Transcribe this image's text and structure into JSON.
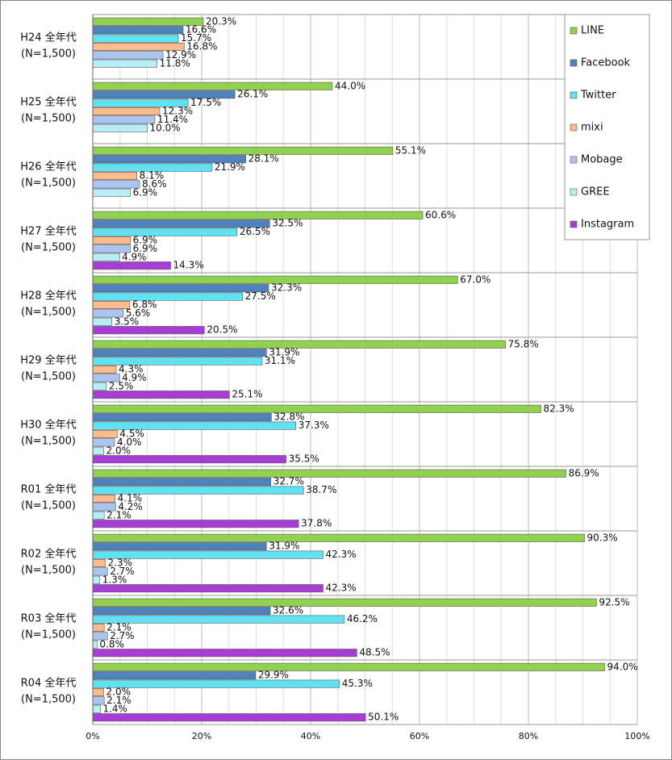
{
  "chart_data": {
    "type": "bar",
    "orientation": "horizontal",
    "categories": [
      "H24 全年代",
      "H25 全年代",
      "H26 全年代",
      "H27 全年代",
      "H28 全年代",
      "H29 全年代",
      "H30 全年代",
      "R01 全年代",
      "R02 全年代",
      "R03 全年代",
      "R04 全年代"
    ],
    "category_sublabels": [
      "(N=1,500)",
      "(N=1,500)",
      "(N=1,500)",
      "(N=1,500)",
      "(N=1,500)",
      "(N=1,500)",
      "(N=1,500)",
      "(N=1,500)",
      "(N=1,500)",
      "(N=1,500)",
      "(N=1,500)"
    ],
    "series": [
      {
        "name": "LINE",
        "color": "#92d050",
        "values": [
          20.3,
          44.0,
          55.1,
          60.6,
          67.0,
          75.8,
          82.3,
          86.9,
          90.3,
          92.5,
          94.0
        ],
        "value_labels": [
          "20.3%",
          "44.0%",
          "55.1%",
          "60.6%",
          "67.0%",
          "75.8%",
          "82.3%",
          "86.9%",
          "90.3%",
          "92.5%",
          "94.0%"
        ]
      },
      {
        "name": "Facebook",
        "color": "#4f81bd",
        "values": [
          16.6,
          26.1,
          28.1,
          32.5,
          32.3,
          31.9,
          32.8,
          32.7,
          31.9,
          32.6,
          29.9
        ],
        "value_labels": [
          "16.6%",
          "26.1%",
          "28.1%",
          "32.5%",
          "32.3%",
          "31.9%",
          "32.8%",
          "32.7%",
          "31.9%",
          "32.6%",
          "29.9%"
        ]
      },
      {
        "name": "Twitter",
        "color": "#5fe3f2",
        "values": [
          15.7,
          17.5,
          21.9,
          26.5,
          27.5,
          31.1,
          37.3,
          38.7,
          42.3,
          46.2,
          45.3
        ],
        "value_labels": [
          "15.7%",
          "17.5%",
          "21.9%",
          "26.5%",
          "27.5%",
          "31.1%",
          "37.3%",
          "38.7%",
          "42.3%",
          "46.2%",
          "45.3%"
        ]
      },
      {
        "name": "mixi",
        "color": "#fabb8e",
        "values": [
          16.8,
          12.3,
          8.1,
          6.9,
          6.8,
          4.3,
          4.5,
          4.1,
          2.3,
          2.1,
          2.0
        ],
        "value_labels": [
          "16.8%",
          "12.3%",
          "8.1%",
          "6.9%",
          "6.8%",
          "4.3%",
          "4.5%",
          "4.1%",
          "2.3%",
          "2.1%",
          "2.0%"
        ]
      },
      {
        "name": "Mobage",
        "color": "#a9c5f0",
        "values": [
          12.9,
          11.4,
          8.6,
          6.9,
          5.6,
          4.9,
          4.0,
          4.2,
          2.7,
          2.7,
          2.1
        ],
        "value_labels": [
          "12.9%",
          "11.4%",
          "8.6%",
          "6.9%",
          "5.6%",
          "4.9%",
          "4.0%",
          "4.2%",
          "2.7%",
          "2.7%",
          "2.1%"
        ]
      },
      {
        "name": "GREE",
        "color": "#b8eef7",
        "values": [
          11.8,
          10.0,
          6.9,
          4.9,
          3.5,
          2.5,
          2.0,
          2.1,
          1.3,
          0.8,
          1.4
        ],
        "value_labels": [
          "11.8%",
          "10.0%",
          "6.9%",
          "4.9%",
          "3.5%",
          "2.5%",
          "2.0%",
          "2.1%",
          "1.3%",
          "0.8%",
          "1.4%"
        ]
      },
      {
        "name": "Instagram",
        "color": "#a83cd6",
        "values": [
          null,
          null,
          null,
          14.3,
          20.5,
          25.1,
          35.5,
          37.8,
          42.3,
          48.5,
          50.1
        ],
        "value_labels": [
          null,
          null,
          null,
          "14.3%",
          "20.5%",
          "25.1%",
          "35.5%",
          "37.8%",
          "42.3%",
          "48.5%",
          "50.1%"
        ]
      }
    ],
    "xlim": [
      0,
      100
    ],
    "xticks": [
      {
        "value": 0,
        "label": "0%"
      },
      {
        "value": 20,
        "label": "20%"
      },
      {
        "value": 40,
        "label": "40%"
      },
      {
        "value": 60,
        "label": "60%"
      },
      {
        "value": 80,
        "label": "80%"
      },
      {
        "value": 100,
        "label": "100%"
      }
    ],
    "grid": true,
    "legend": "upper right"
  }
}
